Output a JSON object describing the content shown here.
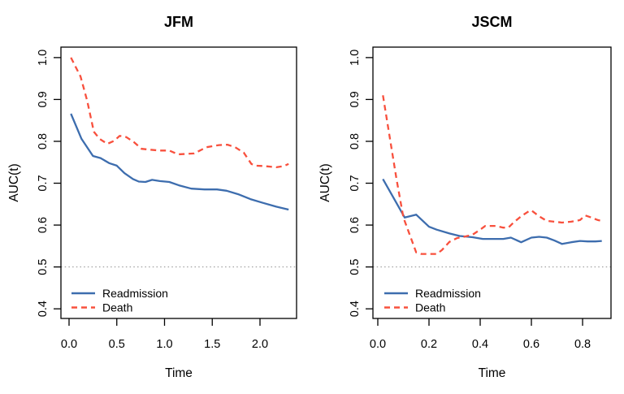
{
  "page": {
    "background": "#ffffff"
  },
  "colors": {
    "readmission_line": "#3D6DAE",
    "death_line": "#F8503D",
    "reference_line": "#9B9B9B",
    "axis": "#000000"
  },
  "chart_data": [
    {
      "type": "line",
      "title": "JFM",
      "xlabel": "Time",
      "ylabel": "AUC(t)",
      "xlim": [
        -0.085,
        2.383
      ],
      "ylim": [
        0.377,
        1.025
      ],
      "x_ticks": [
        0.0,
        0.5,
        1.0,
        1.5,
        2.0
      ],
      "x_tick_labels": [
        "0.0",
        "0.5",
        "1.0",
        "1.5",
        "2.0"
      ],
      "y_ticks": [
        0.4,
        0.5,
        0.6,
        0.7,
        0.8,
        0.9,
        1.0
      ],
      "y_tick_labels": [
        "0.4",
        "0.5",
        "0.6",
        "0.7",
        "0.8",
        "0.9",
        "1.0"
      ],
      "grid": false,
      "reference_line": {
        "y": 0.5,
        "style": "dotted",
        "color": "#9B9B9B"
      },
      "legend_position": "bottom-left-inside",
      "series": [
        {
          "name": "Readmission",
          "color": "#3D6DAE",
          "linetype": "solid",
          "x": [
            0.02,
            0.13,
            0.25,
            0.33,
            0.42,
            0.5,
            0.58,
            0.67,
            0.73,
            0.8,
            0.87,
            0.95,
            1.05,
            1.15,
            1.28,
            1.42,
            1.55,
            1.65,
            1.78,
            1.9,
            2.03,
            2.17,
            2.3
          ],
          "y": [
            0.866,
            0.806,
            0.765,
            0.76,
            0.748,
            0.742,
            0.724,
            0.71,
            0.704,
            0.703,
            0.708,
            0.705,
            0.703,
            0.695,
            0.687,
            0.685,
            0.685,
            0.682,
            0.673,
            0.662,
            0.653,
            0.644,
            0.637
          ]
        },
        {
          "name": "Death",
          "color": "#F8503D",
          "linetype": "dashed",
          "x": [
            0.02,
            0.12,
            0.19,
            0.26,
            0.32,
            0.4,
            0.47,
            0.53,
            0.6,
            0.68,
            0.76,
            0.85,
            0.95,
            1.05,
            1.14,
            1.31,
            1.44,
            1.57,
            1.66,
            1.74,
            1.83,
            1.91,
            1.95,
            2.04,
            2.17,
            2.25,
            2.3
          ],
          "y": [
            1.0,
            0.955,
            0.897,
            0.823,
            0.806,
            0.794,
            0.801,
            0.813,
            0.81,
            0.798,
            0.782,
            0.78,
            0.778,
            0.778,
            0.769,
            0.771,
            0.786,
            0.791,
            0.792,
            0.786,
            0.773,
            0.746,
            0.742,
            0.741,
            0.738,
            0.741,
            0.746
          ]
        }
      ]
    },
    {
      "type": "line",
      "title": "JSCM",
      "xlabel": "Time",
      "ylabel": "AUC(t)",
      "xlim": [
        -0.019,
        0.911
      ],
      "ylim": [
        0.377,
        1.025
      ],
      "x_ticks": [
        0.0,
        0.2,
        0.4,
        0.6,
        0.8
      ],
      "x_tick_labels": [
        "0.0",
        "0.2",
        "0.4",
        "0.6",
        "0.8"
      ],
      "y_ticks": [
        0.4,
        0.5,
        0.6,
        0.7,
        0.8,
        0.9,
        1.0
      ],
      "y_tick_labels": [
        "0.4",
        "0.5",
        "0.6",
        "0.7",
        "0.8",
        "0.9",
        "1.0"
      ],
      "grid": false,
      "reference_line": {
        "y": 0.5,
        "style": "dotted",
        "color": "#9B9B9B"
      },
      "legend_position": "bottom-left-inside",
      "series": [
        {
          "name": "Readmission",
          "color": "#3D6DAE",
          "linetype": "solid",
          "x": [
            0.02,
            0.105,
            0.15,
            0.2,
            0.23,
            0.28,
            0.32,
            0.37,
            0.41,
            0.45,
            0.49,
            0.52,
            0.56,
            0.6,
            0.63,
            0.66,
            0.69,
            0.72,
            0.755,
            0.79,
            0.82,
            0.85,
            0.875
          ],
          "y": [
            0.71,
            0.618,
            0.625,
            0.596,
            0.589,
            0.58,
            0.574,
            0.571,
            0.567,
            0.567,
            0.567,
            0.57,
            0.559,
            0.57,
            0.572,
            0.57,
            0.563,
            0.555,
            0.559,
            0.562,
            0.561,
            0.561,
            0.562
          ]
        },
        {
          "name": "Death",
          "color": "#F8503D",
          "linetype": "dashed",
          "x": [
            0.02,
            0.073,
            0.1,
            0.15,
            0.17,
            0.23,
            0.25,
            0.28,
            0.31,
            0.33,
            0.37,
            0.4,
            0.42,
            0.46,
            0.49,
            0.51,
            0.53,
            0.56,
            0.59,
            0.6,
            0.63,
            0.66,
            0.69,
            0.72,
            0.755,
            0.79,
            0.81,
            0.83,
            0.86,
            0.875
          ],
          "y": [
            0.91,
            0.71,
            0.618,
            0.535,
            0.531,
            0.531,
            0.54,
            0.56,
            0.569,
            0.571,
            0.577,
            0.589,
            0.598,
            0.598,
            0.594,
            0.594,
            0.606,
            0.621,
            0.633,
            0.635,
            0.621,
            0.61,
            0.608,
            0.606,
            0.608,
            0.612,
            0.623,
            0.619,
            0.612,
            0.61
          ]
        }
      ]
    }
  ]
}
